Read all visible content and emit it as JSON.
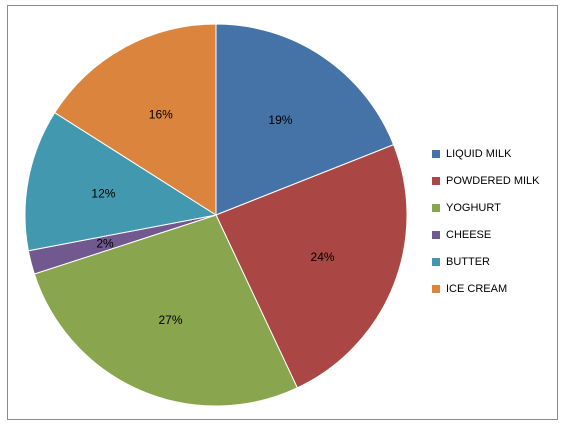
{
  "chart_data": {
    "type": "pie",
    "title": "",
    "slices": [
      {
        "label": "LIQUID MILK",
        "value": 19,
        "display": "19%",
        "color": "#4572A7"
      },
      {
        "label": "POWDERED MILK",
        "value": 24,
        "display": "24%",
        "color": "#AA4643"
      },
      {
        "label": "YOGHURT",
        "value": 27,
        "display": "27%",
        "color": "#89A54E"
      },
      {
        "label": "CHEESE",
        "value": 2,
        "display": "2%",
        "color": "#71588F"
      },
      {
        "label": "BUTTER",
        "value": 12,
        "display": "12%",
        "color": "#4198AF"
      },
      {
        "label": "ICE CREAM",
        "value": 16,
        "display": "16%",
        "color": "#DB843D"
      }
    ],
    "legend_position": "right",
    "start_angle": "12 o'clock",
    "direction": "clockwise"
  }
}
